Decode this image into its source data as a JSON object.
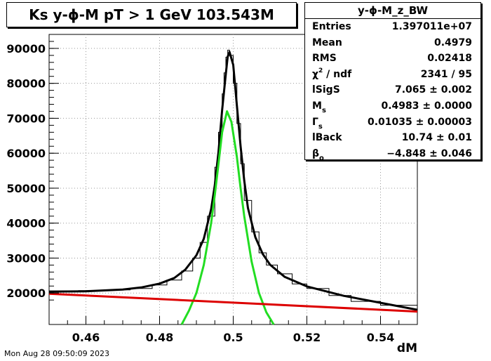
{
  "chart_data": {
    "type": "line",
    "title": "Ks y-ϕ-M pT > 1 GeV  103.543M",
    "xlabel": "dM",
    "ylabel": "",
    "xlim": [
      0.45,
      0.55
    ],
    "ylim": [
      11000,
      94000
    ],
    "x_ticks": [
      0.46,
      0.48,
      0.5,
      0.52,
      0.54
    ],
    "x_tick_labels": [
      "0.46",
      "0.48",
      "0.5",
      "0.52",
      "0.54"
    ],
    "y_ticks": [
      20000,
      30000,
      40000,
      50000,
      60000,
      70000,
      80000,
      90000
    ],
    "y_tick_labels": [
      "20000",
      "30000",
      "40000",
      "50000",
      "60000",
      "70000",
      "80000",
      "90000"
    ],
    "grid": true,
    "series": [
      {
        "name": "",
        "style": "histogram",
        "color": "#000000",
        "x": [
          0.45,
          0.458,
          0.466,
          0.472,
          0.478,
          0.482,
          0.486,
          0.489,
          0.491,
          0.493,
          0.495,
          0.496,
          0.497,
          0.4975,
          0.498,
          0.4985,
          0.499,
          0.5,
          0.501,
          0.502,
          0.503,
          0.505,
          0.507,
          0.509,
          0.512,
          0.516,
          0.52,
          0.526,
          0.532,
          0.54,
          0.55
        ],
        "y": [
          20600,
          20700,
          20900,
          21300,
          22300,
          23700,
          26300,
          30000,
          34500,
          42000,
          56000,
          66000,
          77000,
          83000,
          87500,
          89500,
          88000,
          80000,
          68500,
          57000,
          46500,
          37500,
          31500,
          28000,
          25500,
          22600,
          21300,
          19300,
          17600,
          16500,
          15200
        ]
      },
      {
        "name": "",
        "style": "fit",
        "color": "#000000",
        "x": [
          0.45,
          0.46,
          0.47,
          0.475,
          0.48,
          0.484,
          0.487,
          0.49,
          0.492,
          0.494,
          0.495,
          0.496,
          0.497,
          0.498,
          0.4985,
          0.499,
          0.5,
          0.501,
          0.502,
          0.503,
          0.504,
          0.506,
          0.508,
          0.51,
          0.514,
          0.52,
          0.53,
          0.54,
          0.55
        ],
        "y": [
          20400,
          20500,
          21000,
          21600,
          22700,
          24300,
          26700,
          30800,
          35500,
          44000,
          50800,
          60400,
          72400,
          82800,
          87600,
          89000,
          85300,
          73700,
          62000,
          52200,
          44300,
          36000,
          31200,
          28100,
          24600,
          21900,
          19200,
          17200,
          15200
        ]
      },
      {
        "name": "",
        "style": "fit",
        "color": "#22dd22",
        "x": [
          0.486,
          0.488,
          0.49,
          0.492,
          0.494,
          0.495,
          0.496,
          0.497,
          0.4983,
          0.4995,
          0.501,
          0.502,
          0.503,
          0.505,
          0.507,
          0.509,
          0.511
        ],
        "y": [
          11000,
          15000,
          20000,
          28000,
          40000,
          48000,
          57000,
          66000,
          72000,
          69000,
          59000,
          50000,
          42000,
          29000,
          20000,
          14500,
          11000
        ]
      },
      {
        "name": "",
        "style": "fit",
        "color": "#dd0000",
        "x": [
          0.45,
          0.55
        ],
        "y": [
          19800,
          14700
        ]
      }
    ]
  },
  "stats": {
    "header": "y-ϕ-M_z_BW",
    "rows": [
      {
        "label": "Entries",
        "value": "1.397011e+07"
      },
      {
        "label": "Mean",
        "value": "0.4979"
      },
      {
        "label": "RMS",
        "value": "0.02418"
      },
      {
        "label_pre": "χ",
        "label_sup": "2",
        "label_post": " / ndf",
        "value": "2341 / 95"
      },
      {
        "label": "lSigS",
        "value": "7.065 ± 0.002"
      },
      {
        "label_pre": "M",
        "label_sub": "s",
        "value": "0.4983 ± 0.0000"
      },
      {
        "label_pre": "Γ",
        "label_sub": "s",
        "value": "0.01035 ± 0.00003"
      },
      {
        "label": "lBack",
        "value": "10.74 ± 0.01"
      },
      {
        "label_pre": "β",
        "label_sub": "o",
        "value": "−4.848 ± 0.046"
      }
    ]
  },
  "timestamp": "Mon Aug 28 09:50:09 2023"
}
